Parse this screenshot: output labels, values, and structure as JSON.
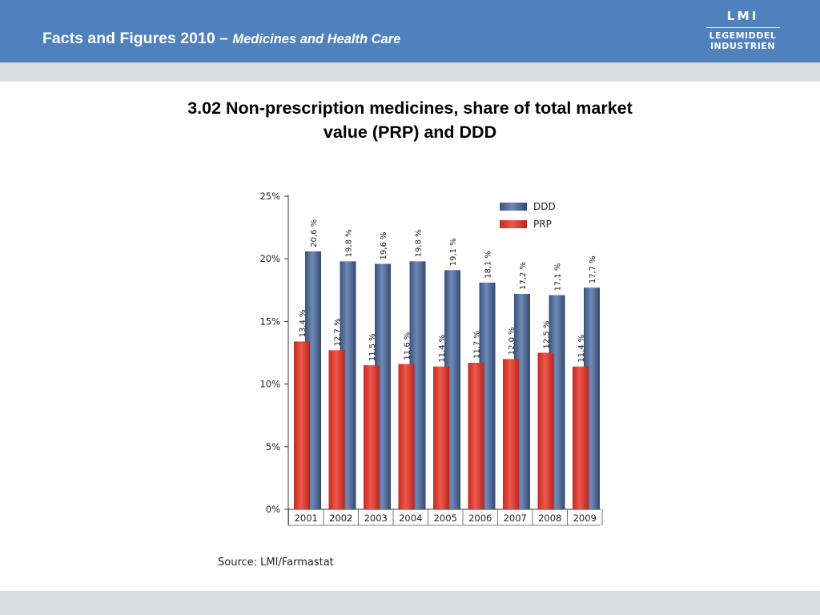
{
  "header": {
    "title": "Facts and Figures 2010 –",
    "subtitle": "Medicines and Health Care"
  },
  "logo": {
    "line1": "LMI",
    "line2": "LEGEMIDDEL",
    "line3": "INDUSTRIEN"
  },
  "colors": {
    "header_bg": "#4f81bd",
    "band_bg": "#d9dee1",
    "ddd": "#4a6491",
    "prp": "#e0392e"
  },
  "source": "Source: LMI/Farmastat",
  "chart_data": {
    "type": "bar",
    "title": "3.02 Non-prescription medicines, share of total market value (PRP) and DDD",
    "categories": [
      "2001",
      "2002",
      "2003",
      "2004",
      "2005",
      "2006",
      "2007",
      "2008",
      "2009"
    ],
    "series": [
      {
        "name": "DDD",
        "values": [
          20.6,
          19.8,
          19.6,
          19.8,
          19.1,
          18.1,
          17.2,
          17.1,
          17.7
        ],
        "labels": [
          "20,6 %",
          "19,8 %",
          "19,6 %",
          "19,8 %",
          "19,1 %",
          "18,1 %",
          "17,2 %",
          "17,1 %",
          "17,7 %"
        ]
      },
      {
        "name": "PRP",
        "values": [
          13.4,
          12.7,
          11.5,
          11.6,
          11.4,
          11.7,
          12.0,
          12.5,
          11.4
        ],
        "labels": [
          "13,4 %",
          "12,7 %",
          "11,5 %",
          "11,6 %",
          "11,4 %",
          "11,7 %",
          "12,0 %",
          "12,5 %",
          "11,4 %"
        ]
      }
    ],
    "ylim": [
      0,
      25
    ],
    "yticks": [
      0,
      5,
      10,
      15,
      20,
      25
    ],
    "ytick_labels": [
      "0%",
      "5%",
      "10%",
      "15%",
      "20%",
      "25%"
    ],
    "legend_position": "top-right",
    "grid": false
  }
}
